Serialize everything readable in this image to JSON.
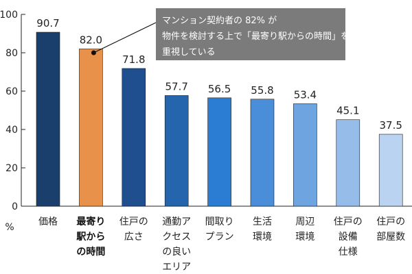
{
  "chart_data": {
    "type": "bar",
    "title": "",
    "xlabel": "",
    "ylabel": "%",
    "ylim": [
      0,
      100
    ],
    "yticks": [
      0,
      20,
      40,
      60,
      80,
      100
    ],
    "grid": false,
    "categories": [
      [
        "価格"
      ],
      [
        "最寄り",
        "駅から",
        "の時間"
      ],
      [
        "住戸の",
        "広さ"
      ],
      [
        "通勤ア",
        "クセス",
        "の良い",
        "エリア"
      ],
      [
        "間取り",
        "プラン"
      ],
      [
        "生活",
        "環境"
      ],
      [
        "周辺",
        "環境"
      ],
      [
        "住戸の",
        "設備",
        "仕様"
      ],
      [
        "住戸の",
        "部屋数"
      ]
    ],
    "values": [
      90.7,
      82.0,
      71.8,
      57.7,
      56.5,
      55.8,
      53.4,
      45.1,
      37.5
    ],
    "value_labels": [
      "90.7",
      "82.0",
      "71.8",
      "57.7",
      "56.5",
      "55.8",
      "53.4",
      "45.1",
      "37.5"
    ],
    "colors": [
      "#1b3f6c",
      "#e8914a",
      "#1f4f8f",
      "#2465ad",
      "#2a7dd2",
      "#4a8ed9",
      "#6ea4df",
      "#96bde9",
      "#b9d3f0"
    ],
    "highlight_index": 1,
    "annotation": {
      "lines": [
        "マンション契約者の 82% が",
        "物件を検討する上で「最寄り駅からの時間」を",
        "重視している"
      ],
      "background": "#7b7b7b"
    }
  }
}
